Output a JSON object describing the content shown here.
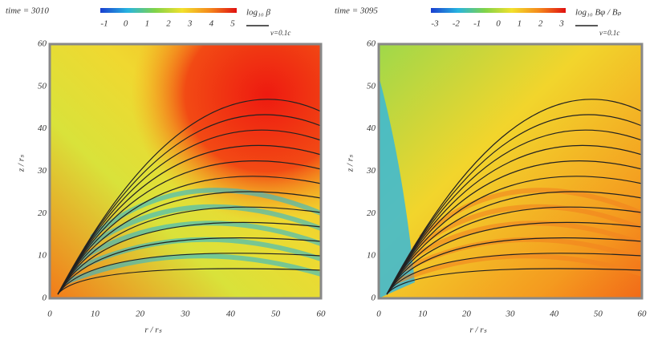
{
  "panels": [
    {
      "time_label": "time = 3010",
      "colorbar_ticks": [
        -1,
        0,
        1,
        2,
        3,
        4,
        5
      ],
      "colorbar_label": "log₁₀ β",
      "arrow_label": "v=0.1c",
      "xticks": [
        0,
        10,
        20,
        30,
        40,
        50,
        60
      ],
      "yticks": [
        0,
        10,
        20,
        30,
        40,
        50,
        60
      ],
      "xlabel": "r / rₛ",
      "ylabel": "z / rₛ"
    },
    {
      "time_label": "time = 3095",
      "colorbar_ticks": [
        -3,
        -2,
        -1,
        0,
        1,
        2,
        3
      ],
      "colorbar_label": "log₁₀ Bφ / Bₚ",
      "arrow_label": "v=0.1c",
      "xticks": [
        0,
        10,
        20,
        30,
        40,
        50,
        60
      ],
      "yticks": [
        0,
        10,
        20,
        30,
        40,
        50,
        60
      ],
      "xlabel": "r / rₛ",
      "ylabel": "z / rₛ"
    }
  ]
}
